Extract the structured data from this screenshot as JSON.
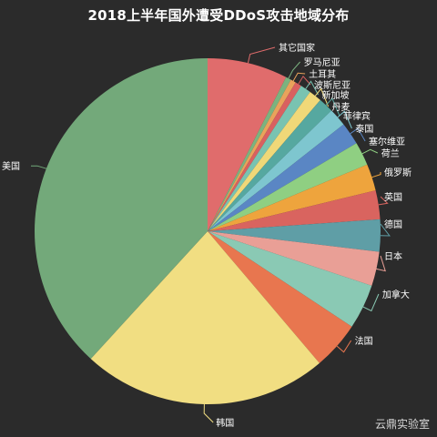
{
  "chart_data": {
    "type": "pie",
    "title": "2018上半年国外遭受DDoS攻击地域分布",
    "slices": [
      {
        "label": "其它国家",
        "value": 7.5,
        "color": "#e06c6c",
        "side": "right"
      },
      {
        "label": "罗马尼亚",
        "value": 0.5,
        "color": "#7bb37f",
        "side": "right"
      },
      {
        "label": "土耳其",
        "value": 0.5,
        "color": "#e9a35b",
        "side": "right"
      },
      {
        "label": "波斯尼亚",
        "value": 0.6,
        "color": "#d96060",
        "side": "right"
      },
      {
        "label": "新加坡",
        "value": 1.0,
        "color": "#79c3b1",
        "side": "right"
      },
      {
        "label": "丹麦",
        "value": 1.2,
        "color": "#f0d878",
        "side": "right"
      },
      {
        "label": "菲律宾",
        "value": 1.4,
        "color": "#56a8a0",
        "side": "right"
      },
      {
        "label": "泰国",
        "value": 1.7,
        "color": "#7ec6cf",
        "side": "right"
      },
      {
        "label": "塞尔维亚",
        "value": 2.1,
        "color": "#5a86c4",
        "side": "right"
      },
      {
        "label": "荷兰",
        "value": 2.2,
        "color": "#8fcf82",
        "side": "right"
      },
      {
        "label": "俄罗斯",
        "value": 2.5,
        "color": "#eea43d",
        "side": "right"
      },
      {
        "label": "英国",
        "value": 2.7,
        "color": "#d9645f",
        "side": "right"
      },
      {
        "label": "德国",
        "value": 3.0,
        "color": "#5f9ea6",
        "side": "right"
      },
      {
        "label": "日本",
        "value": 3.2,
        "color": "#e99f96",
        "side": "right"
      },
      {
        "label": "加拿大",
        "value": 4.2,
        "color": "#8ac9b4",
        "side": "right"
      },
      {
        "label": "法国",
        "value": 4.5,
        "color": "#e8764f",
        "side": "right"
      },
      {
        "label": "韩国",
        "value": 23.0,
        "color": "#f1de82",
        "side": "bottom"
      },
      {
        "label": "美国",
        "value": 38.2,
        "color": "#73a97a",
        "side": "left"
      }
    ],
    "legend": "none"
  },
  "watermark": "云鼎实验室"
}
